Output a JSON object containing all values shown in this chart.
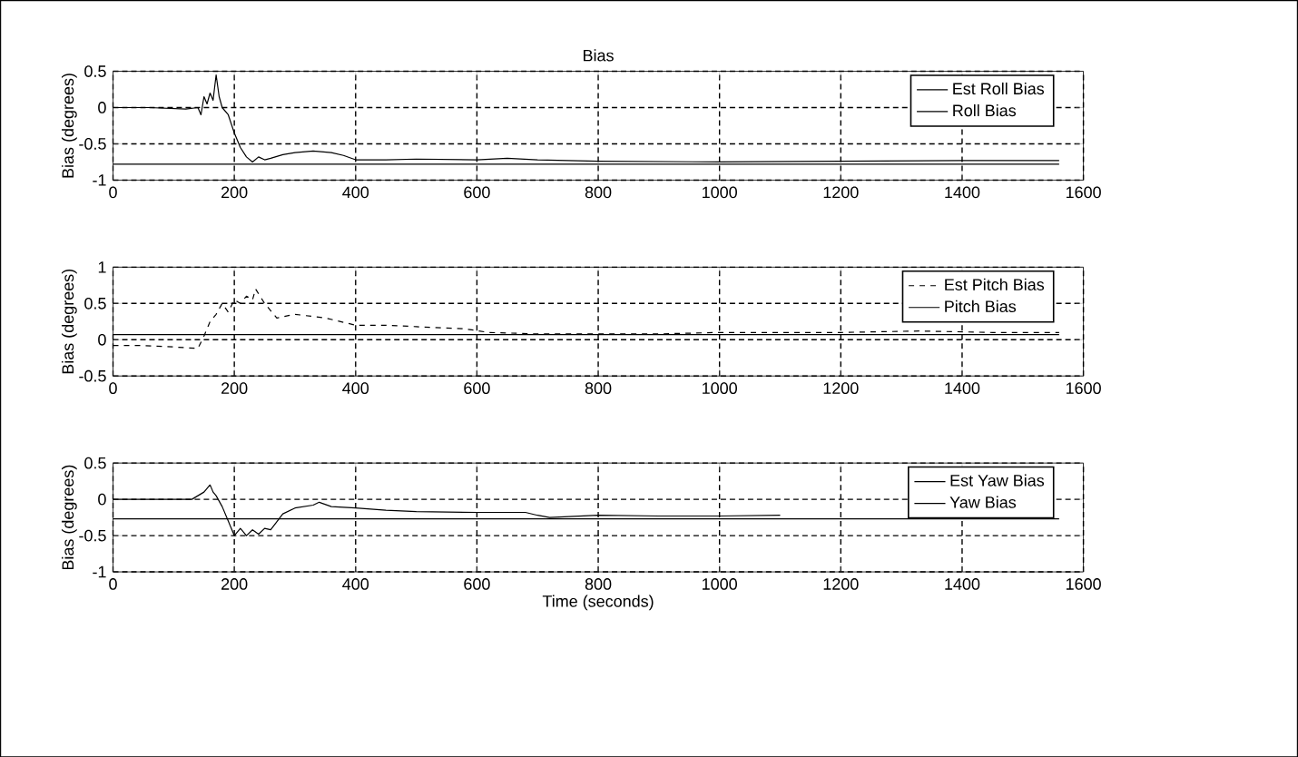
{
  "chart_data": [
    {
      "type": "line",
      "title": "Bias",
      "ylabel": "Bias (degrees)",
      "xlim": [
        0,
        1600
      ],
      "ylim": [
        -1,
        0.5
      ],
      "xticks": [
        0,
        200,
        400,
        600,
        800,
        1000,
        1200,
        1400,
        1600
      ],
      "yticks": [
        -1,
        -0.5,
        0,
        0.5
      ],
      "grid": true,
      "legend": "top right",
      "marker": "none",
      "series": [
        {
          "name": "Est Roll Bias",
          "color": "#000000",
          "line_style": "solid",
          "x": [
            0,
            60,
            120,
            140,
            145,
            150,
            155,
            160,
            165,
            170,
            175,
            180,
            190,
            200,
            210,
            220,
            230,
            240,
            250,
            260,
            280,
            300,
            330,
            360,
            380,
            400,
            450,
            500,
            600,
            650,
            700,
            800,
            1000,
            1200,
            1400,
            1560
          ],
          "values": [
            0,
            0,
            -0.02,
            0,
            -0.1,
            0.15,
            0.05,
            0.2,
            0.1,
            0.45,
            0.15,
            0,
            -0.1,
            -0.35,
            -0.55,
            -0.68,
            -0.75,
            -0.68,
            -0.72,
            -0.7,
            -0.65,
            -0.62,
            -0.6,
            -0.62,
            -0.66,
            -0.72,
            -0.72,
            -0.71,
            -0.72,
            -0.7,
            -0.72,
            -0.74,
            -0.75,
            -0.74,
            -0.73,
            -0.73
          ]
        },
        {
          "name": "Roll Bias",
          "color": "#000000",
          "line_style": "solid",
          "x": [
            0,
            1560
          ],
          "values": [
            -0.78,
            -0.78
          ]
        }
      ]
    },
    {
      "type": "line",
      "ylabel": "Bias (degrees)",
      "xlim": [
        0,
        1600
      ],
      "ylim": [
        -0.5,
        1
      ],
      "xticks": [
        0,
        200,
        400,
        600,
        800,
        1000,
        1200,
        1400,
        1600
      ],
      "yticks": [
        -0.5,
        0,
        0.5,
        1
      ],
      "grid": true,
      "legend": "top right",
      "marker": "none",
      "series": [
        {
          "name": "Est Pitch Bias",
          "color": "#000000",
          "line_style": "dashed",
          "x": [
            0,
            50,
            100,
            140,
            150,
            160,
            170,
            180,
            190,
            200,
            210,
            220,
            230,
            235,
            250,
            270,
            300,
            350,
            400,
            450,
            500,
            580,
            620,
            700,
            800,
            900,
            1000,
            1100,
            1200,
            1330,
            1450,
            1560
          ],
          "values": [
            -0.08,
            -0.08,
            -0.1,
            -0.12,
            0.05,
            0.25,
            0.35,
            0.5,
            0.38,
            0.55,
            0.5,
            0.6,
            0.55,
            0.7,
            0.5,
            0.3,
            0.35,
            0.3,
            0.2,
            0.2,
            0.18,
            0.15,
            0.1,
            0.08,
            0.08,
            0.08,
            0.1,
            0.1,
            0.1,
            0.12,
            0.1,
            0.1
          ]
        },
        {
          "name": "Pitch Bias",
          "color": "#000000",
          "line_style": "solid",
          "x": [
            0,
            1560
          ],
          "values": [
            0.07,
            0.07
          ]
        }
      ]
    },
    {
      "type": "line",
      "ylabel": "Bias (degrees)",
      "xlabel": "Time (seconds)",
      "xlim": [
        0,
        1600
      ],
      "ylim": [
        -1,
        0.5
      ],
      "xticks": [
        0,
        200,
        400,
        600,
        800,
        1000,
        1200,
        1400,
        1600
      ],
      "yticks": [
        -1,
        -0.5,
        0,
        0.5
      ],
      "grid": true,
      "legend": "top right",
      "marker": "none",
      "series": [
        {
          "name": "Est Yaw Bias",
          "color": "#000000",
          "line_style": "solid",
          "x": [
            0,
            60,
            130,
            150,
            160,
            165,
            170,
            180,
            190,
            200,
            210,
            220,
            230,
            240,
            250,
            260,
            280,
            300,
            330,
            340,
            360,
            400,
            450,
            500,
            600,
            680,
            700,
            720,
            800,
            900,
            1000,
            1100
          ],
          "values": [
            0,
            0,
            0,
            0.1,
            0.2,
            0.1,
            0.05,
            -0.1,
            -0.3,
            -0.5,
            -0.4,
            -0.5,
            -0.42,
            -0.48,
            -0.4,
            -0.42,
            -0.2,
            -0.12,
            -0.08,
            -0.04,
            -0.1,
            -0.12,
            -0.15,
            -0.17,
            -0.18,
            -0.18,
            -0.22,
            -0.25,
            -0.22,
            -0.23,
            -0.23,
            -0.22
          ]
        },
        {
          "name": "Yaw Bias",
          "color": "#000000",
          "line_style": "solid",
          "x": [
            0,
            1560
          ],
          "values": [
            -0.27,
            -0.27
          ]
        }
      ]
    }
  ]
}
